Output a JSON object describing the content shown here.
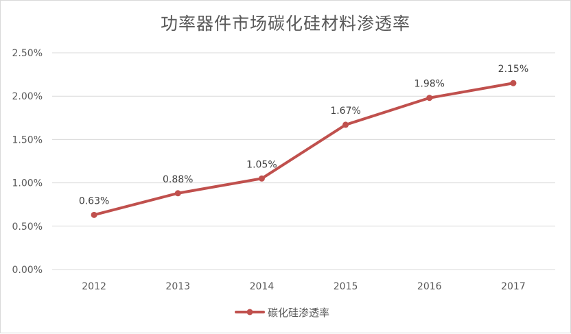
{
  "chart_data": {
    "type": "line",
    "title": "功率器件市场碳化硅材料渗透率",
    "categories": [
      "2012",
      "2013",
      "2014",
      "2015",
      "2016",
      "2017"
    ],
    "series": [
      {
        "name": "碳化硅渗透率",
        "values": [
          0.63,
          0.88,
          1.05,
          1.67,
          1.98,
          2.15
        ],
        "labels": [
          "0.63%",
          "0.88%",
          "1.05%",
          "1.67%",
          "1.98%",
          "2.15%"
        ],
        "color": "#C0504D"
      }
    ],
    "yticks": [
      "0.00%",
      "0.50%",
      "1.00%",
      "1.50%",
      "2.00%",
      "2.50%"
    ],
    "ylim": [
      0,
      2.5
    ],
    "xlabel": "",
    "ylabel": "",
    "grid": true,
    "legend": "bottom"
  }
}
